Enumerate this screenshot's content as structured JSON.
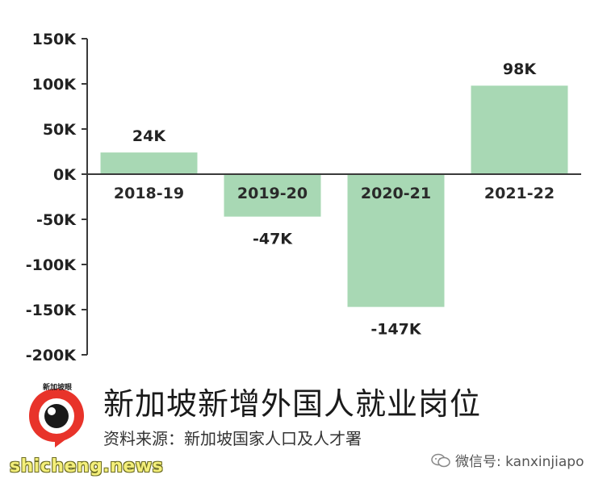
{
  "chart_data": {
    "type": "bar",
    "categories": [
      "2018-19",
      "2019-20",
      "2020-21",
      "2021-22"
    ],
    "values": [
      24,
      -47,
      -147,
      98
    ],
    "data_labels": [
      "24K",
      "-47K",
      "-147K",
      "98K"
    ],
    "y_ticks": [
      150,
      100,
      50,
      0,
      -50,
      -100,
      -150,
      -200
    ],
    "y_tick_labels": [
      "150K",
      "100K",
      "50K",
      "0K",
      "-50K",
      "-100K",
      "-150K",
      "-200K"
    ],
    "ylim": [
      -200,
      150
    ],
    "unit": "K",
    "bar_color": "#a8d8b4",
    "grid": false,
    "title": "新加坡新增外国人就业岗位",
    "source": "资料来源：新加坡国家人口及人才署"
  },
  "branding": {
    "logo_text": "新加坡眼",
    "wechat_label": "微信号: kanxinjiapo",
    "watermark": "shicheng.news",
    "logo_color": "#e8332a"
  }
}
